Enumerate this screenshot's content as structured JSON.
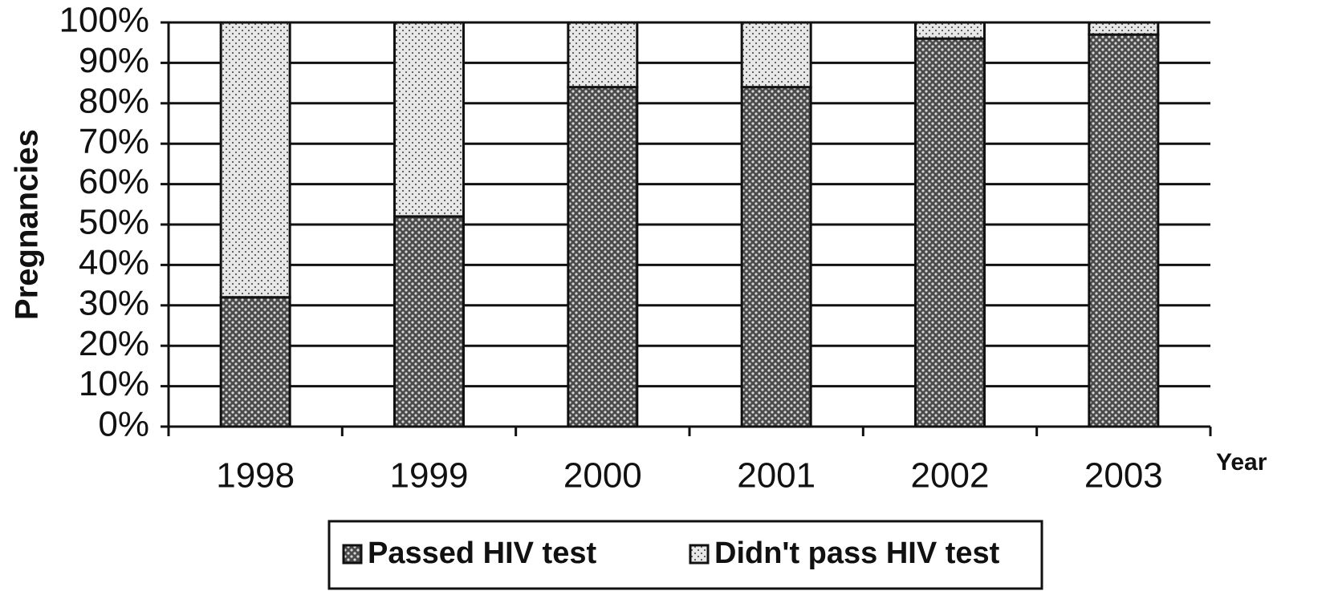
{
  "chart_data": {
    "type": "stacked_bar",
    "x_label": "Year",
    "y_label": "Pregnancies",
    "categories": [
      "1998",
      "1999",
      "2000",
      "2001",
      "2002",
      "2003"
    ],
    "series": [
      {
        "name": "Passed HIV test",
        "color": "#4a4a4a",
        "values": [
          32,
          52,
          84,
          84,
          96,
          97
        ]
      },
      {
        "name": "Didn't pass HIV test",
        "color": "#e8e8e8",
        "values": [
          68,
          48,
          16,
          16,
          4,
          3
        ]
      }
    ],
    "ylim": [
      0,
      100
    ],
    "yticks": [
      {
        "value": 0,
        "label": "0%"
      },
      {
        "value": 10,
        "label": "10%"
      },
      {
        "value": 20,
        "label": "20%"
      },
      {
        "value": 30,
        "label": "30%"
      },
      {
        "value": 40,
        "label": "40%"
      },
      {
        "value": 50,
        "label": "50%"
      },
      {
        "value": 60,
        "label": "60%"
      },
      {
        "value": 70,
        "label": "70%"
      },
      {
        "value": 80,
        "label": "80%"
      },
      {
        "value": 90,
        "label": "90%"
      },
      {
        "value": 100,
        "label": "100%"
      }
    ],
    "grid": true,
    "legend": "bottom"
  }
}
